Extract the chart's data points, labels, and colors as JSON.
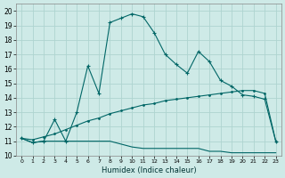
{
  "title": "",
  "xlabel": "Humidex (Indice chaleur)",
  "background_color": "#ceeae7",
  "grid_color": "#aed4d0",
  "line_color": "#006666",
  "xlim": [
    -0.5,
    23.5
  ],
  "ylim": [
    10,
    20.5
  ],
  "xticks": [
    0,
    1,
    2,
    3,
    4,
    5,
    6,
    7,
    8,
    9,
    10,
    11,
    12,
    13,
    14,
    15,
    16,
    17,
    18,
    19,
    20,
    21,
    22,
    23
  ],
  "yticks": [
    10,
    11,
    12,
    13,
    14,
    15,
    16,
    17,
    18,
    19,
    20
  ],
  "line1_x": [
    0,
    1,
    2,
    3,
    4,
    5,
    6,
    7,
    8,
    9,
    10,
    11,
    12,
    13,
    14,
    15,
    16,
    17,
    18,
    19,
    20,
    21,
    22,
    23
  ],
  "line1_y": [
    11.2,
    10.9,
    11.0,
    12.5,
    11.0,
    13.0,
    16.2,
    14.3,
    19.2,
    19.5,
    19.8,
    19.6,
    18.5,
    17.0,
    16.3,
    15.7,
    17.2,
    16.5,
    15.2,
    14.8,
    14.2,
    14.1,
    13.9,
    11.0
  ],
  "line2_x": [
    0,
    1,
    2,
    3,
    4,
    5,
    6,
    7,
    8,
    9,
    10,
    11,
    12,
    13,
    14,
    15,
    16,
    17,
    18,
    19,
    20,
    21,
    22,
    23
  ],
  "line2_y": [
    11.2,
    10.9,
    11.0,
    11.0,
    11.0,
    11.0,
    11.0,
    11.0,
    11.0,
    10.8,
    10.6,
    10.5,
    10.5,
    10.5,
    10.5,
    10.5,
    10.5,
    10.3,
    10.3,
    10.2,
    10.2,
    10.2,
    10.2,
    10.2
  ],
  "line3_x": [
    0,
    1,
    2,
    3,
    4,
    5,
    6,
    7,
    8,
    9,
    10,
    11,
    12,
    13,
    14,
    15,
    16,
    17,
    18,
    19,
    20,
    21,
    22,
    23
  ],
  "line3_y": [
    11.2,
    11.1,
    11.3,
    11.5,
    11.8,
    12.1,
    12.4,
    12.6,
    12.9,
    13.1,
    13.3,
    13.5,
    13.6,
    13.8,
    13.9,
    14.0,
    14.1,
    14.2,
    14.3,
    14.4,
    14.5,
    14.5,
    14.3,
    11.0
  ]
}
